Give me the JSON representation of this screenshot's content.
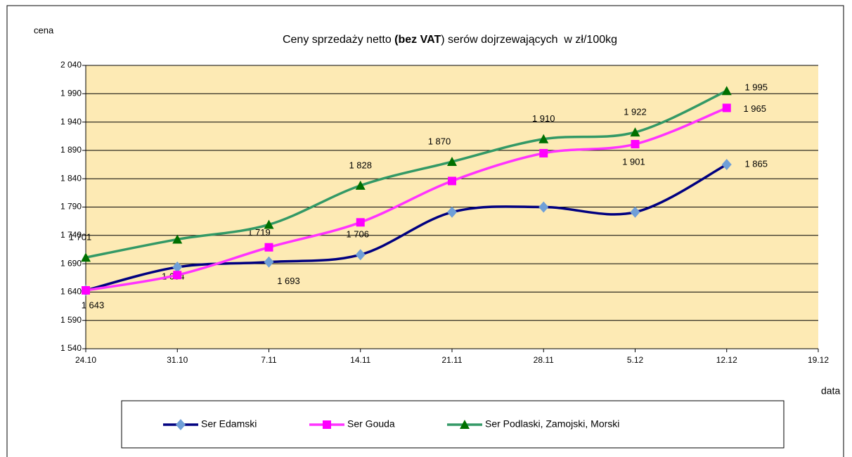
{
  "chart_data": {
    "type": "line",
    "title": [
      "Ceny sprzedaży netto ",
      "(bez VAT",
      ") serów dojrzewających  w zł/100kg"
    ],
    "y_label": "cena",
    "x_label": "data",
    "categories": [
      "24.10",
      "31.10",
      "7.11",
      "14.11",
      "21.11",
      "28.11",
      "5.12",
      "12.12",
      "19.12"
    ],
    "series": [
      {
        "name": "Ser Edamski",
        "color": "#000080",
        "marker_color": "#6f9fd8",
        "marker": "diamond",
        "values": [
          1643,
          1684,
          1693,
          1706,
          1781,
          1790,
          1781,
          1865,
          null
        ],
        "value_labels": [
          "1 643",
          "1 684",
          "1 693",
          "1 706",
          null,
          null,
          null,
          "1 865",
          null
        ]
      },
      {
        "name": "Ser Gouda",
        "color": "#ff33ff",
        "marker_color": "#ff00ff",
        "marker": "square",
        "values": [
          1643,
          1670,
          1719,
          1763,
          1836,
          1885,
          1901,
          1965,
          null
        ],
        "value_labels": [
          null,
          null,
          "1 719",
          null,
          null,
          null,
          "1 901",
          "1 965",
          null
        ]
      },
      {
        "name": "Ser Podlaski, Zamojski, Morski",
        "color": "#339966",
        "marker_color": "#007000",
        "marker": "triangle",
        "values": [
          1701,
          1733,
          1759,
          1828,
          1870,
          1910,
          1922,
          1995,
          null
        ],
        "value_labels": [
          "1 701",
          null,
          null,
          "1 828",
          "1 870",
          "1 910",
          "1 922",
          "1 995",
          null
        ]
      }
    ],
    "ylim": [
      1540,
      2040
    ],
    "yticks": [
      {
        "value": 1540,
        "label": "1 540"
      },
      {
        "value": 1590,
        "label": "1 590"
      },
      {
        "value": 1640,
        "label": "1 640"
      },
      {
        "value": 1690,
        "label": "1 690"
      },
      {
        "value": 1740,
        "label": "1 740"
      },
      {
        "value": 1790,
        "label": "1 790"
      },
      {
        "value": 1840,
        "label": "1 840"
      },
      {
        "value": 1890,
        "label": "1 890"
      },
      {
        "value": 1940,
        "label": "1 940"
      },
      {
        "value": 1990,
        "label": "1 990"
      },
      {
        "value": 2040,
        "label": "2 040"
      }
    ],
    "grid": true,
    "background": "#fdeab4",
    "legend": "bottom"
  }
}
